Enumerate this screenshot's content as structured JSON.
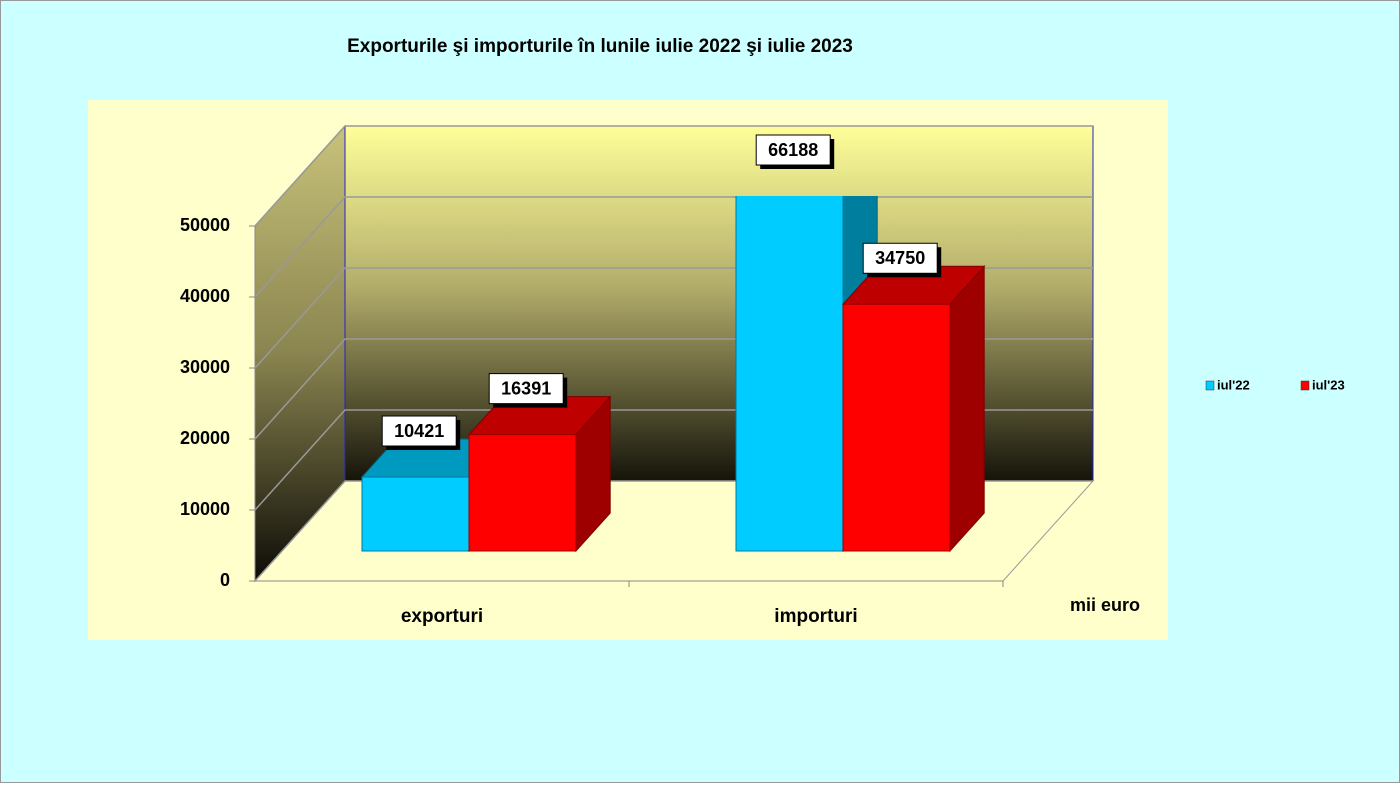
{
  "chart_data": {
    "type": "bar3d",
    "title": "Exporturile şi importurile în lunile iulie 2022 şi iulie 2023",
    "categories": [
      "exporturi",
      "importuri"
    ],
    "series": [
      {
        "name": "iul'22",
        "color": "#00ccff",
        "values": [
          10421,
          66188
        ]
      },
      {
        "name": "iul'23",
        "color": "#ff0000",
        "values": [
          16391,
          34750
        ]
      }
    ],
    "ylim": [
      0,
      50000
    ],
    "yticks": [
      0,
      10000,
      20000,
      30000,
      40000,
      50000
    ],
    "grid": true,
    "legend": "right",
    "annotation": "mii euro"
  }
}
